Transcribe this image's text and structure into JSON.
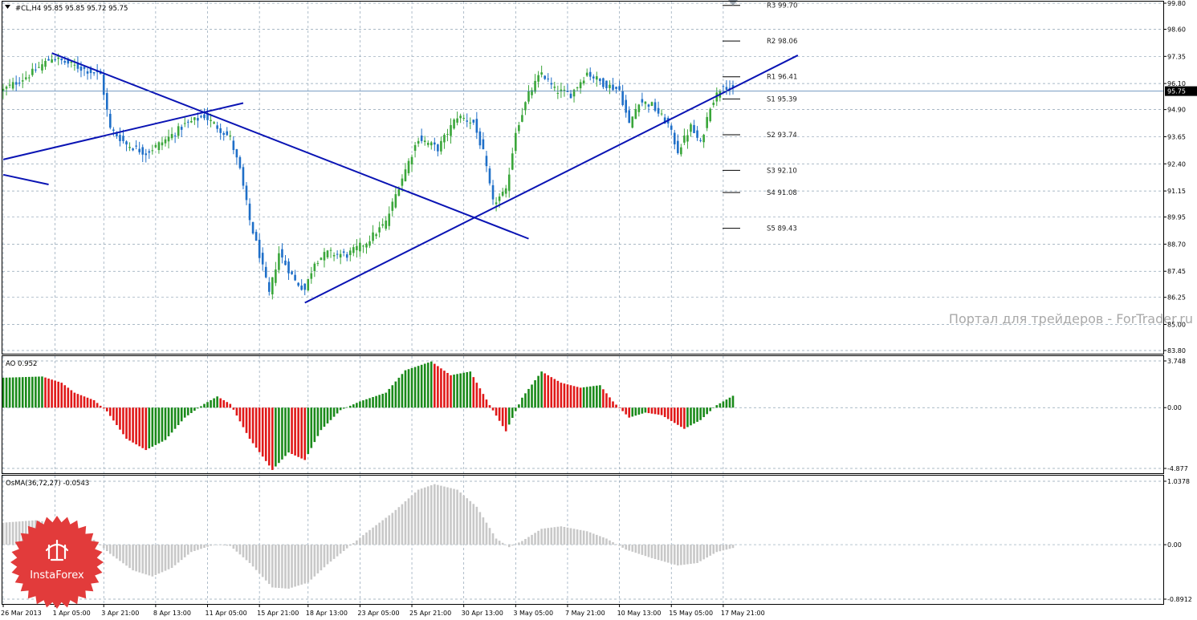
{
  "symbol_info": "#CL,H4  95.85 95.85 95.72 95.75",
  "last_price_label": "95.75",
  "watermark": "Портал для трейдеров - ForTrader.ru",
  "logo_text": "InstaForex",
  "colors": {
    "bull_candle": "#3aa63a",
    "bear_candle": "#1f6fc8",
    "trendline": "#0a14b4",
    "ao_up": "#1a8a1a",
    "ao_down": "#e01818",
    "osma": "#c8c8c8",
    "grid": "#8ea2b4",
    "logo": "#e23b3b"
  },
  "chart_data": [
    {
      "type": "candlestick",
      "panel": "price",
      "title": "#CL,H4  95.85 95.85 95.72 95.75",
      "ylim": [
        83.8,
        99.8
      ],
      "y_ticks": [
        "99.80",
        "98.60",
        "97.35",
        "96.10",
        "94.90",
        "93.65",
        "92.40",
        "91.15",
        "89.95",
        "88.70",
        "87.45",
        "86.25",
        "85.00",
        "83.80"
      ],
      "last_price": 95.75,
      "keypoints": [
        {
          "bar": 0,
          "price": 95.8
        },
        {
          "bar": 8,
          "price": 96.5
        },
        {
          "bar": 15,
          "price": 97.3
        },
        {
          "bar": 24,
          "price": 96.8
        },
        {
          "bar": 30,
          "price": 96.5
        },
        {
          "bar": 33,
          "price": 94.0
        },
        {
          "bar": 38,
          "price": 93.3
        },
        {
          "bar": 44,
          "price": 92.9
        },
        {
          "bar": 50,
          "price": 93.5
        },
        {
          "bar": 56,
          "price": 94.2
        },
        {
          "bar": 62,
          "price": 94.6
        },
        {
          "bar": 70,
          "price": 93.6
        },
        {
          "bar": 73,
          "price": 92.1
        },
        {
          "bar": 76,
          "price": 89.8
        },
        {
          "bar": 79,
          "price": 88.2
        },
        {
          "bar": 82,
          "price": 86.4
        },
        {
          "bar": 85,
          "price": 88.3
        },
        {
          "bar": 90,
          "price": 87.0
        },
        {
          "bar": 93,
          "price": 86.6
        },
        {
          "bar": 96,
          "price": 87.9
        },
        {
          "bar": 100,
          "price": 88.3
        },
        {
          "bar": 106,
          "price": 88.2
        },
        {
          "bar": 112,
          "price": 88.8
        },
        {
          "bar": 118,
          "price": 89.7
        },
        {
          "bar": 122,
          "price": 91.4
        },
        {
          "bar": 128,
          "price": 93.6
        },
        {
          "bar": 134,
          "price": 93.1
        },
        {
          "bar": 140,
          "price": 94.6
        },
        {
          "bar": 145,
          "price": 94.3
        },
        {
          "bar": 148,
          "price": 92.9
        },
        {
          "bar": 151,
          "price": 90.6
        },
        {
          "bar": 155,
          "price": 91.1
        },
        {
          "bar": 158,
          "price": 93.9
        },
        {
          "bar": 162,
          "price": 95.6
        },
        {
          "bar": 166,
          "price": 96.6
        },
        {
          "bar": 170,
          "price": 95.8
        },
        {
          "bar": 175,
          "price": 95.6
        },
        {
          "bar": 180,
          "price": 96.6
        },
        {
          "bar": 185,
          "price": 96.1
        },
        {
          "bar": 190,
          "price": 95.8
        },
        {
          "bar": 193,
          "price": 94.2
        },
        {
          "bar": 196,
          "price": 95.3
        },
        {
          "bar": 200,
          "price": 95.1
        },
        {
          "bar": 205,
          "price": 94.2
        },
        {
          "bar": 208,
          "price": 93.0
        },
        {
          "bar": 212,
          "price": 94.1
        },
        {
          "bar": 215,
          "price": 93.3
        },
        {
          "bar": 218,
          "price": 95.1
        },
        {
          "bar": 222,
          "price": 96.1
        },
        {
          "bar": 225,
          "price": 95.75
        }
      ],
      "pivot_levels": [
        {
          "label": "R3",
          "value": 99.7
        },
        {
          "label": "R2",
          "value": 98.06
        },
        {
          "label": "R1",
          "value": 96.41
        },
        {
          "label": "S1",
          "value": 95.39
        },
        {
          "label": "S2",
          "value": 93.74
        },
        {
          "label": "S3",
          "value": 92.1
        },
        {
          "label": "S4",
          "value": 91.08
        },
        {
          "label": "S5",
          "value": 89.43
        }
      ],
      "trendlines": [
        {
          "from": {
            "bar": 15,
            "price": 97.5
          },
          "to": {
            "bar": 162,
            "price": 88.95
          }
        },
        {
          "from": {
            "bar": 0,
            "price": 92.6
          },
          "to": {
            "bar": 74,
            "price": 95.2
          }
        },
        {
          "from": {
            "bar": 93,
            "price": 86.0
          },
          "to": {
            "bar": 245,
            "price": 97.4
          }
        },
        {
          "from": {
            "bar": 0,
            "price": 91.9
          },
          "to": {
            "bar": 14,
            "price": 91.45
          }
        }
      ],
      "x_tick_labels": [
        "26 Mar 2013",
        "1 Apr 05:00",
        "3 Apr 21:00",
        "8 Apr 13:00",
        "11 Apr 05:00",
        "15 Apr 21:00",
        "18 Apr 13:00",
        "23 Apr 05:00",
        "25 Apr 21:00",
        "30 Apr 13:00",
        "3 May 05:00",
        "7 May 21:00",
        "10 May 13:00",
        "15 May 05:00",
        "17 May 21:00"
      ]
    },
    {
      "type": "histogram",
      "panel": "ao",
      "title": "AO 0.952",
      "last_value": 0.952,
      "ylim": [
        -4.877,
        3.748
      ],
      "y_ticks": [
        "3.748",
        "0.00",
        "-4.877"
      ],
      "keypoints": [
        {
          "bar": 0,
          "value": 2.4
        },
        {
          "bar": 12,
          "value": 2.5
        },
        {
          "bar": 18,
          "value": 2.0
        },
        {
          "bar": 22,
          "value": 1.2
        },
        {
          "bar": 28,
          "value": 0.6
        },
        {
          "bar": 32,
          "value": -0.3
        },
        {
          "bar": 38,
          "value": -2.5
        },
        {
          "bar": 44,
          "value": -3.4
        },
        {
          "bar": 50,
          "value": -2.6
        },
        {
          "bar": 56,
          "value": -0.8
        },
        {
          "bar": 62,
          "value": 0.3
        },
        {
          "bar": 66,
          "value": 0.9
        },
        {
          "bar": 70,
          "value": 0.3
        },
        {
          "bar": 76,
          "value": -2.5
        },
        {
          "bar": 83,
          "value": -5.0
        },
        {
          "bar": 88,
          "value": -3.6
        },
        {
          "bar": 93,
          "value": -4.2
        },
        {
          "bar": 98,
          "value": -1.8
        },
        {
          "bar": 104,
          "value": -0.2
        },
        {
          "bar": 110,
          "value": 0.5
        },
        {
          "bar": 118,
          "value": 1.2
        },
        {
          "bar": 124,
          "value": 3.0
        },
        {
          "bar": 132,
          "value": 3.7
        },
        {
          "bar": 138,
          "value": 2.6
        },
        {
          "bar": 144,
          "value": 2.9
        },
        {
          "bar": 150,
          "value": 0.2
        },
        {
          "bar": 155,
          "value": -1.9
        },
        {
          "bar": 160,
          "value": 0.8
        },
        {
          "bar": 166,
          "value": 2.9
        },
        {
          "bar": 172,
          "value": 2.0
        },
        {
          "bar": 178,
          "value": 1.6
        },
        {
          "bar": 184,
          "value": 1.8
        },
        {
          "bar": 188,
          "value": 0.5
        },
        {
          "bar": 193,
          "value": -0.8
        },
        {
          "bar": 198,
          "value": -0.4
        },
        {
          "bar": 203,
          "value": -0.6
        },
        {
          "bar": 210,
          "value": -1.7
        },
        {
          "bar": 215,
          "value": -1.0
        },
        {
          "bar": 220,
          "value": 0.2
        },
        {
          "bar": 225,
          "value": 0.952
        }
      ]
    },
    {
      "type": "histogram",
      "panel": "osma",
      "title": "OsMA(36,72,27) -0.0543",
      "last_value": -0.0543,
      "ylim": [
        -0.8912,
        1.0378
      ],
      "y_ticks": [
        "1.0378",
        "0.00",
        "-0.8912"
      ],
      "keypoints": [
        {
          "bar": 0,
          "value": 0.36
        },
        {
          "bar": 10,
          "value": 0.4
        },
        {
          "bar": 20,
          "value": 0.32
        },
        {
          "bar": 28,
          "value": 0.08
        },
        {
          "bar": 33,
          "value": -0.15
        },
        {
          "bar": 40,
          "value": -0.42
        },
        {
          "bar": 46,
          "value": -0.52
        },
        {
          "bar": 52,
          "value": -0.38
        },
        {
          "bar": 58,
          "value": -0.12
        },
        {
          "bar": 65,
          "value": 0.0
        },
        {
          "bar": 70,
          "value": -0.02
        },
        {
          "bar": 76,
          "value": -0.3
        },
        {
          "bar": 83,
          "value": -0.7
        },
        {
          "bar": 88,
          "value": -0.72
        },
        {
          "bar": 94,
          "value": -0.62
        },
        {
          "bar": 100,
          "value": -0.32
        },
        {
          "bar": 106,
          "value": -0.06
        },
        {
          "bar": 112,
          "value": 0.2
        },
        {
          "bar": 120,
          "value": 0.52
        },
        {
          "bar": 128,
          "value": 0.9
        },
        {
          "bar": 133,
          "value": 0.99
        },
        {
          "bar": 140,
          "value": 0.9
        },
        {
          "bar": 146,
          "value": 0.62
        },
        {
          "bar": 152,
          "value": 0.1
        },
        {
          "bar": 156,
          "value": -0.04
        },
        {
          "bar": 160,
          "value": 0.06
        },
        {
          "bar": 166,
          "value": 0.26
        },
        {
          "bar": 172,
          "value": 0.3
        },
        {
          "bar": 180,
          "value": 0.22
        },
        {
          "bar": 186,
          "value": 0.1
        },
        {
          "bar": 192,
          "value": -0.08
        },
        {
          "bar": 200,
          "value": -0.22
        },
        {
          "bar": 208,
          "value": -0.34
        },
        {
          "bar": 214,
          "value": -0.3
        },
        {
          "bar": 220,
          "value": -0.12
        },
        {
          "bar": 225,
          "value": -0.0543
        }
      ]
    }
  ]
}
